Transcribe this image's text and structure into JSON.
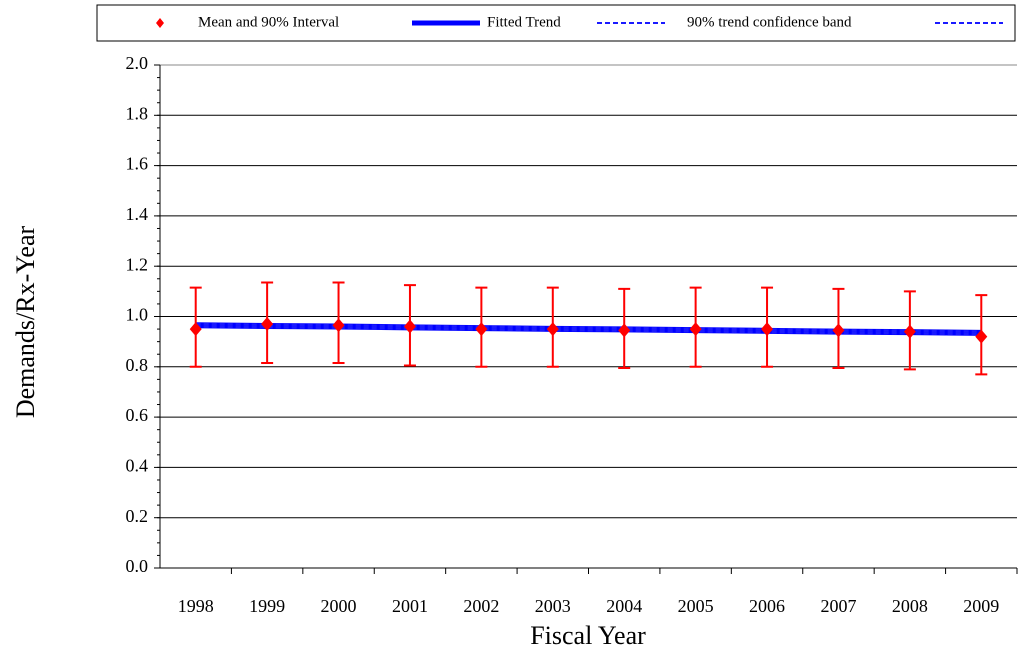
{
  "chart_data": {
    "type": "line",
    "xlabel": "Fiscal Year",
    "ylabel": "Demands/Rx-Year",
    "categories": [
      "1998",
      "1999",
      "2000",
      "2001",
      "2002",
      "2003",
      "2004",
      "2005",
      "2006",
      "2007",
      "2008",
      "2009"
    ],
    "ylim": [
      0,
      2
    ],
    "yticks": [
      {
        "value": 0,
        "label": "0.0"
      },
      0.2,
      0.4,
      0.6,
      0.8,
      {
        "value": 1,
        "label": "1.0"
      },
      1.2,
      1.4,
      1.6,
      1.8,
      {
        "value": 2,
        "label": "2.0"
      }
    ],
    "grid": true,
    "legend": "top",
    "series": [
      {
        "name": "Mean and 90% Interval",
        "color": "#ff0000",
        "marker": "diamond",
        "values": [
          0.95,
          0.97,
          0.965,
          0.96,
          0.95,
          0.95,
          0.945,
          0.95,
          0.95,
          0.945,
          0.94,
          0.92
        ],
        "lower": [
          0.8,
          0.815,
          0.815,
          0.805,
          0.8,
          0.8,
          0.795,
          0.8,
          0.8,
          0.795,
          0.79,
          0.77
        ],
        "upper": [
          1.115,
          1.135,
          1.135,
          1.125,
          1.115,
          1.115,
          1.11,
          1.115,
          1.115,
          1.11,
          1.1,
          1.085
        ]
      },
      {
        "name": "Fitted Trend",
        "color": "#0000ff",
        "dashed": false,
        "values": [
          0.965,
          0.962,
          0.96,
          0.957,
          0.954,
          0.951,
          0.949,
          0.946,
          0.943,
          0.94,
          0.938,
          0.935
        ]
      },
      {
        "name": "90% trend confidence band",
        "color": "#1a1aff",
        "dashed": true,
        "values": [
          0.97,
          0.967,
          0.965,
          0.962,
          0.959,
          0.956,
          0.954,
          0.951,
          0.948,
          0.945,
          0.943,
          0.94
        ]
      },
      {
        "color": "#1a1aff",
        "dashed": true,
        "values": [
          0.96,
          0.957,
          0.955,
          0.952,
          0.949,
          0.946,
          0.944,
          0.941,
          0.938,
          0.935,
          0.933,
          0.93
        ]
      }
    ]
  }
}
